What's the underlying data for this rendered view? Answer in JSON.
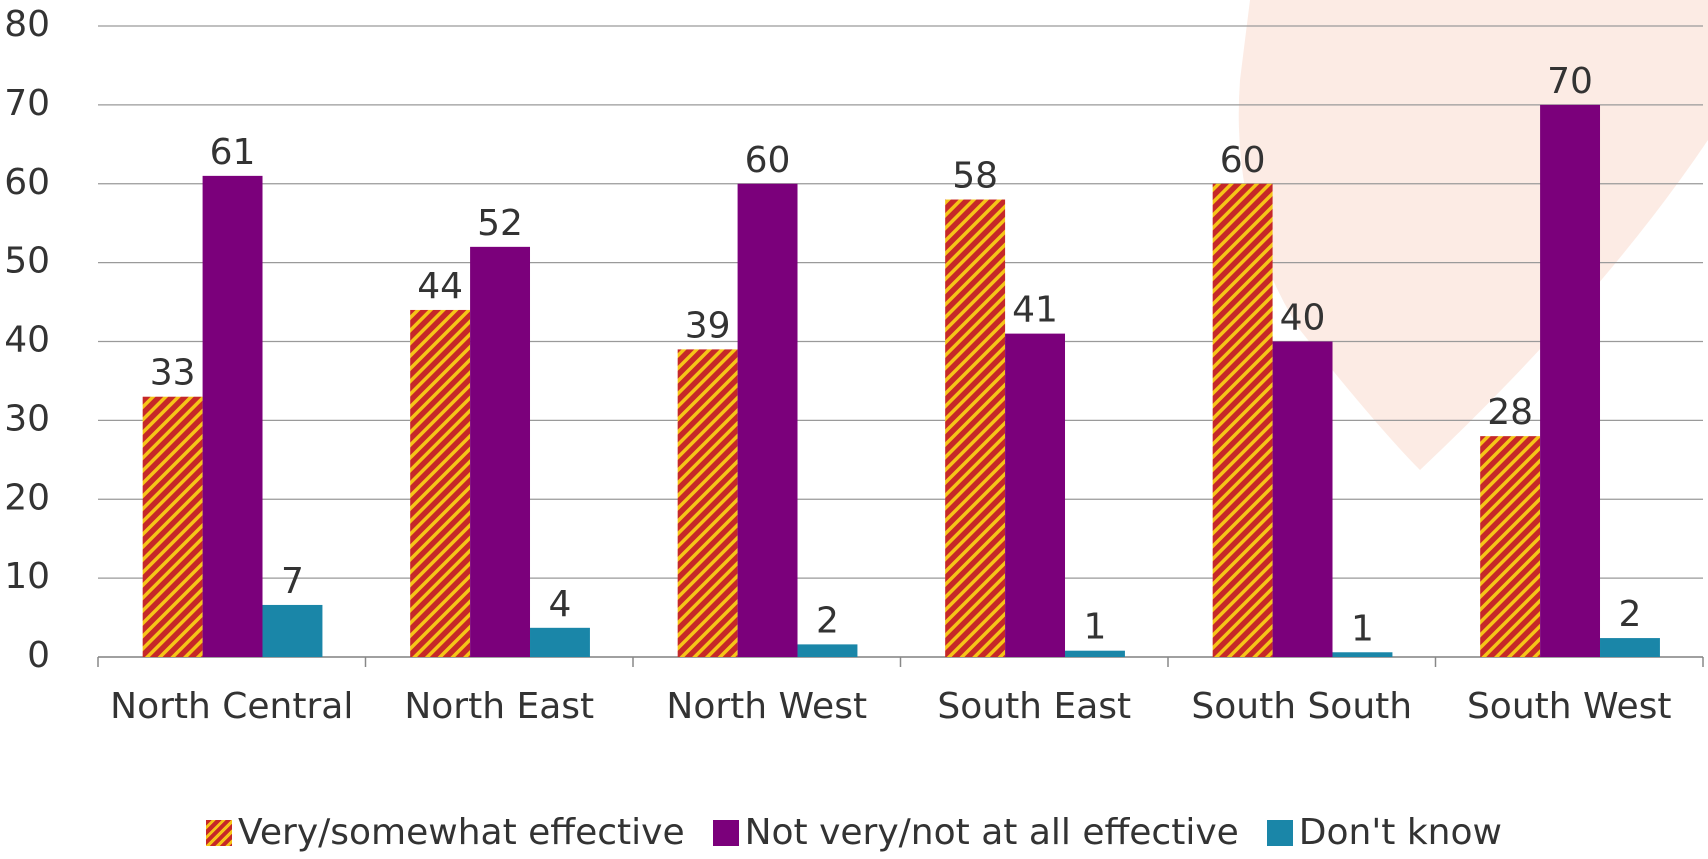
{
  "chart_data": {
    "type": "bar",
    "categories": [
      "North Central",
      "North East",
      "North West",
      "South East",
      "South South",
      "South West"
    ],
    "series": [
      {
        "name": "Very/somewhat effective",
        "color": "#c62828",
        "values": [
          33,
          44,
          39,
          58,
          60,
          28
        ]
      },
      {
        "name": "Not very/not at all effective",
        "color": "#7b007b",
        "values": [
          61,
          52,
          60,
          41,
          40,
          70
        ]
      },
      {
        "name": "Don't know",
        "color": "#1a86a8",
        "values": [
          6.6,
          3.7,
          1.6,
          0.8,
          0.6,
          2.4
        ],
        "value_labels": [
          "7",
          "4",
          "2",
          "1",
          "1",
          "2"
        ]
      }
    ],
    "ylim": [
      0,
      80
    ],
    "yticks": [
      0,
      10,
      20,
      30,
      40,
      50,
      60,
      70,
      80
    ],
    "grid": true
  }
}
